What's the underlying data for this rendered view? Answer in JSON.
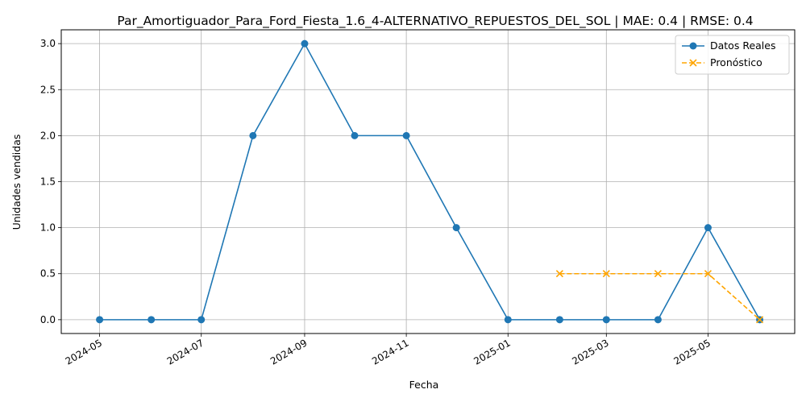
{
  "chart_data": {
    "type": "line",
    "title": "Par_Amortiguador_Para_Ford_Fiesta_1.6_4-ALTERNATIVO_REPUESTOS_DEL_SOL | MAE: 0.4 | RMSE: 0.4",
    "xlabel": "Fecha",
    "ylabel": "Unidades vendidas",
    "ylim": [
      -0.15,
      3.15
    ],
    "xlim": [
      "2024-04-08",
      "2025-06-22"
    ],
    "grid": true,
    "legend_position": "top-right",
    "x_ticks": [
      "2024-05",
      "2024-07",
      "2024-09",
      "2024-11",
      "2025-01",
      "2025-03",
      "2025-05"
    ],
    "y_ticks": [
      "0.0",
      "0.5",
      "1.0",
      "1.5",
      "2.0",
      "2.5",
      "3.0"
    ],
    "series": [
      {
        "name": "Datos Reales",
        "color": "#1f77b4",
        "marker": "circle",
        "line_style": "solid",
        "x": [
          "2024-05-01",
          "2024-06-01",
          "2024-07-01",
          "2024-08-01",
          "2024-09-01",
          "2024-10-01",
          "2024-11-01",
          "2024-12-01",
          "2025-01-01",
          "2025-02-01",
          "2025-03-01",
          "2025-04-01",
          "2025-05-01",
          "2025-06-01"
        ],
        "values": [
          0,
          0,
          0,
          2,
          3,
          2,
          2,
          1,
          0,
          0,
          0,
          0,
          1,
          0
        ]
      },
      {
        "name": "Pronóstico",
        "color": "#ffa500",
        "marker": "x",
        "line_style": "dashed",
        "x": [
          "2025-02-01",
          "2025-03-01",
          "2025-04-01",
          "2025-05-01",
          "2025-06-01"
        ],
        "values": [
          0.5,
          0.5,
          0.5,
          0.5,
          0
        ]
      }
    ]
  }
}
